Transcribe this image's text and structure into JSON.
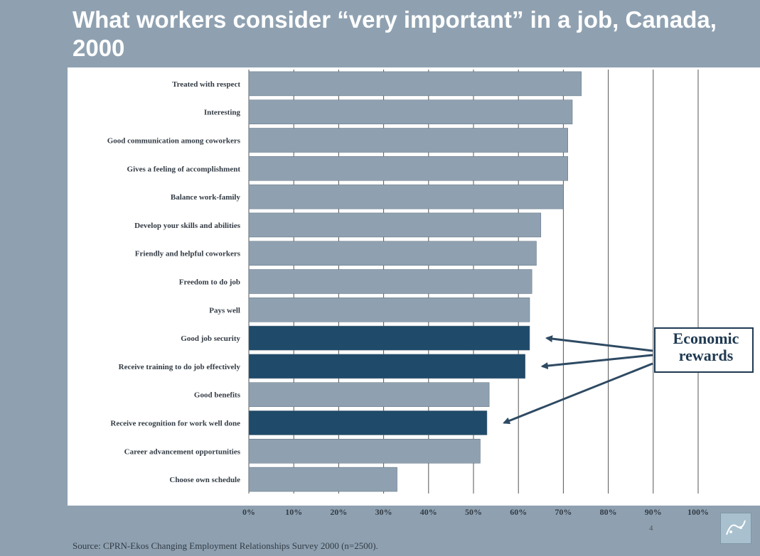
{
  "slide": {
    "title": "What workers consider “very important” in a job, Canada, 2000",
    "source": "Source: CPRN-Ekos Changing Employment Relationships Survey 2000 (n=2500).",
    "page_number": "4",
    "callout": "Economic rewards"
  },
  "colors": {
    "band": "#8fa1b1",
    "bar_default": "#8fa1b1",
    "bar_highlight": "#1f4a6a",
    "arrow": "#2e4a63",
    "grid": "#555555"
  },
  "chart_data": {
    "type": "bar",
    "orientation": "horizontal",
    "title": "What workers consider “very important” in a job, Canada, 2000",
    "xlabel": "",
    "ylabel": "",
    "xlim": [
      0,
      100
    ],
    "x_ticks": [
      "0%",
      "10%",
      "20%",
      "30%",
      "40%",
      "50%",
      "60%",
      "70%",
      "80%",
      "90%",
      "100%"
    ],
    "grid": "vertical",
    "categories": [
      "Treated with respect",
      "Interesting",
      "Good communication among coworkers",
      "Gives a feeling of accomplishment",
      "Balance work-family",
      "Develop your skills and abilities",
      "Friendly and helpful coworkers",
      "Freedom to do job",
      "Pays well",
      "Good job security",
      "Receive training to do job effectively",
      "Good benefits",
      "Receive recognition for work well done",
      "Career advancement opportunities",
      "Choose own schedule"
    ],
    "values": [
      74,
      72,
      71,
      71,
      70,
      65,
      64,
      63,
      62.5,
      62.5,
      61.5,
      53.5,
      53,
      51.5,
      33
    ],
    "highlighted": [
      false,
      false,
      false,
      false,
      false,
      false,
      false,
      false,
      false,
      true,
      true,
      false,
      true,
      false,
      false
    ],
    "annotation": "Economic rewards"
  }
}
